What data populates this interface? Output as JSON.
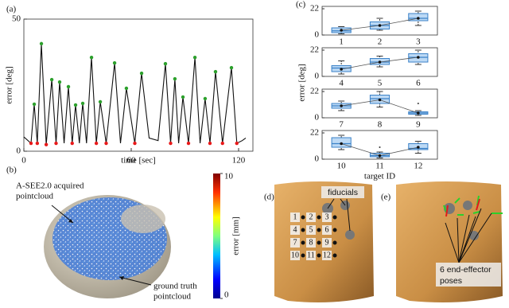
{
  "chart_data": [
    {
      "type": "line",
      "panel_label": "(a)",
      "xlabel": "time [sec]",
      "ylabel": "error [deg]",
      "xlim": [
        0,
        128
      ],
      "ylim": [
        0,
        50
      ],
      "xticks": [
        0,
        60,
        120
      ],
      "yticks": [
        0,
        50
      ],
      "series": [
        {
          "color": "#111111",
          "mode": "line",
          "x": [
            0,
            4,
            5.8,
            7.5,
            9.8,
            12.5,
            15.6,
            18,
            20,
            22.5,
            24.9,
            27,
            28.9,
            31,
            32.9,
            35,
            37.8,
            40.5,
            42.7,
            46,
            50.7,
            54,
            57.3,
            62,
            65.8,
            70,
            75,
            79.1,
            82,
            84.4,
            86.5,
            88.9,
            92,
            95.6,
            98.5,
            101.3,
            104,
            107.1,
            111,
            116,
            119,
            122,
            124
          ],
          "values": [
            5.4,
            3,
            17.8,
            3,
            40.7,
            2.5,
            27.1,
            3,
            26.2,
            3,
            24.4,
            3,
            17.5,
            3,
            18.1,
            3,
            35.5,
            3,
            18.7,
            3,
            33.4,
            3,
            23.8,
            3,
            29.5,
            5,
            4,
            33.1,
            3,
            27.4,
            3,
            20.5,
            3,
            35.5,
            3,
            19.9,
            3,
            30.1,
            3,
            31.6,
            3,
            4,
            5
          ]
        },
        {
          "color": "#2ca02c",
          "mode": "markers",
          "x": [
            5.8,
            9.8,
            15.6,
            20,
            24.9,
            28.9,
            32.9,
            37.8,
            42.7,
            50.7,
            57.3,
            65.8,
            79.1,
            84.4,
            88.9,
            95.6,
            101.3,
            107.1,
            116
          ],
          "values": [
            17.8,
            40.7,
            27.1,
            26.2,
            24.4,
            17.5,
            18.1,
            35.5,
            18.7,
            33.4,
            23.8,
            29.5,
            33.1,
            27.4,
            20.5,
            35.5,
            19.9,
            30.1,
            31.6
          ]
        },
        {
          "color": "#e8191a",
          "mode": "markers",
          "x": [
            4,
            7.5,
            12.5,
            18,
            27,
            40.5,
            46,
            62,
            82,
            92,
            104,
            111,
            119
          ],
          "values": [
            3,
            3,
            2.5,
            3,
            3,
            3,
            3,
            3,
            3,
            3,
            3,
            3,
            3
          ]
        }
      ]
    },
    {
      "type": "box",
      "panel_label": "(c)",
      "ylabel": "error [deg]",
      "ylim": [
        0,
        24
      ],
      "yticks": [
        0,
        22
      ],
      "categories": [
        "1",
        "2",
        "3"
      ],
      "color": "#bcd9f5",
      "boxes": [
        {
          "min": 1,
          "q1": 2,
          "median": 3.5,
          "q3": 6,
          "max": 7,
          "mean": 4
        },
        {
          "min": 4,
          "q1": 5,
          "median": 8,
          "q3": 11,
          "max": 14,
          "mean": 8
        },
        {
          "min": 8,
          "q1": 12,
          "median": 14,
          "q3": 18,
          "max": 20,
          "mean": 14
        }
      ]
    },
    {
      "type": "box",
      "ylim": [
        0,
        24
      ],
      "yticks": [
        0,
        22
      ],
      "categories": [
        "4",
        "5",
        "6"
      ],
      "color": "#bcd9f5",
      "boxes": [
        {
          "min": 2,
          "q1": 4,
          "median": 7,
          "q3": 9,
          "max": 13,
          "mean": 6
        },
        {
          "min": 8,
          "q1": 10,
          "median": 12,
          "q3": 15,
          "max": 17,
          "mean": 12
        },
        {
          "min": 10,
          "q1": 12,
          "median": 16,
          "q3": 19,
          "max": 22,
          "mean": 16
        }
      ]
    },
    {
      "type": "box",
      "ylim": [
        0,
        24
      ],
      "yticks": [
        0,
        22
      ],
      "categories": [
        "7",
        "8",
        "9"
      ],
      "color": "#bcd9f5",
      "boxes": [
        {
          "min": 6,
          "q1": 8,
          "median": 10,
          "q3": 12,
          "max": 14,
          "mean": 10
        },
        {
          "min": 9,
          "q1": 12,
          "median": 16,
          "q3": 19,
          "max": 22,
          "mean": 15
        },
        {
          "min": 2,
          "q1": 3,
          "median": 4,
          "q3": 5,
          "max": 6,
          "mean": 4,
          "outliers": [
            12
          ]
        }
      ]
    },
    {
      "type": "box",
      "xlabel": "target ID",
      "ylim": [
        0,
        24
      ],
      "yticks": [
        0,
        22
      ],
      "categories": [
        "10",
        "11",
        "12"
      ],
      "color": "#bcd9f5",
      "boxes": [
        {
          "min": 8,
          "q1": 10,
          "median": 13,
          "q3": 18,
          "max": 20,
          "mean": 13
        },
        {
          "min": 1,
          "q1": 2,
          "median": 3,
          "q3": 5,
          "max": 6,
          "mean": 3,
          "outliers": [
            10
          ]
        },
        {
          "min": 5,
          "q1": 8,
          "median": 9,
          "q3": 13,
          "max": 15,
          "mean": 10
        }
      ]
    },
    {
      "type": "colorbar",
      "label": "error [mm]",
      "ylim": [
        0,
        10
      ],
      "yticks": [
        0,
        10
      ]
    }
  ],
  "pointcloud": {
    "panel_label": "(b)",
    "acquired": [
      "A-SEE2.0 acquired",
      "pointcloud"
    ],
    "ground_truth": [
      "ground truth",
      "pointcloud"
    ]
  },
  "phantom_d": {
    "panel_label": "(d)",
    "callout": "fiducials",
    "targets": [
      "1",
      "2",
      "3",
      "4",
      "5",
      "6",
      "7",
      "8",
      "9",
      "10",
      "11",
      "12"
    ]
  },
  "phantom_e": {
    "panel_label": "(e)",
    "callout": [
      "6 end-effector",
      "poses"
    ]
  }
}
